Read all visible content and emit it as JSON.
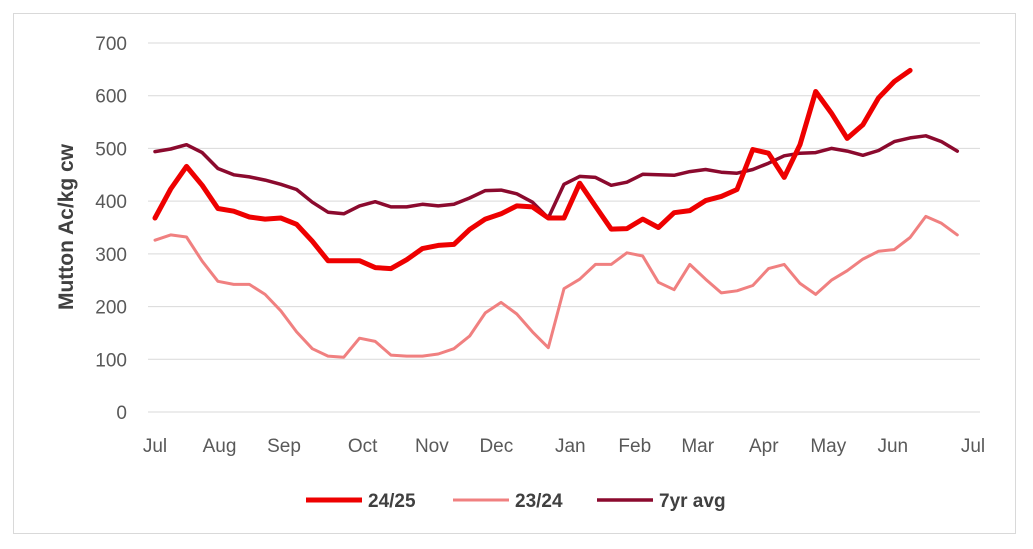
{
  "chart_data": {
    "type": "line",
    "ylabel": "Mutton Ac/kg cw",
    "ylim": [
      0,
      700
    ],
    "yticks": [
      0,
      100,
      200,
      300,
      400,
      500,
      600,
      700
    ],
    "x_range": [
      0,
      52
    ],
    "x_tick_labels": [
      {
        "label": "Jul",
        "x": 0
      },
      {
        "label": "Aug",
        "x": 4.1
      },
      {
        "label": "Sep",
        "x": 8.2
      },
      {
        "label": "Oct",
        "x": 13.2
      },
      {
        "label": "Nov",
        "x": 17.6
      },
      {
        "label": "Dec",
        "x": 21.7
      },
      {
        "label": "Jan",
        "x": 26.4
      },
      {
        "label": "Feb",
        "x": 30.5
      },
      {
        "label": "Mar",
        "x": 34.5
      },
      {
        "label": "Apr",
        "x": 38.7
      },
      {
        "label": "May",
        "x": 42.8
      },
      {
        "label": "Jun",
        "x": 46.9
      },
      {
        "label": "Jul",
        "x": 52
      }
    ],
    "grid": true,
    "legend_position": "bottom",
    "series": [
      {
        "name": "24/25",
        "color": "#ee0000",
        "width": 5,
        "values": [
          [
            0,
            368
          ],
          [
            1,
            423
          ],
          [
            2,
            466
          ],
          [
            3,
            430
          ],
          [
            4,
            386
          ],
          [
            5,
            381
          ],
          [
            6,
            370
          ],
          [
            7,
            366
          ],
          [
            8,
            368
          ],
          [
            9,
            356
          ],
          [
            10,
            324
          ],
          [
            11,
            287
          ],
          [
            12,
            287
          ],
          [
            13,
            287
          ],
          [
            14,
            274
          ],
          [
            15,
            272
          ],
          [
            16,
            289
          ],
          [
            17,
            310
          ],
          [
            18,
            316
          ],
          [
            19,
            318
          ],
          [
            20,
            346
          ],
          [
            21,
            366
          ],
          [
            22,
            376
          ],
          [
            23,
            391
          ],
          [
            24,
            389
          ],
          [
            25,
            368
          ],
          [
            26,
            368
          ],
          [
            27,
            434
          ],
          [
            28,
            390
          ],
          [
            29,
            347
          ],
          [
            30,
            348
          ],
          [
            31,
            366
          ],
          [
            32,
            350
          ],
          [
            33,
            378
          ],
          [
            34,
            382
          ],
          [
            35,
            401
          ],
          [
            36,
            409
          ],
          [
            37,
            422
          ],
          [
            38,
            498
          ],
          [
            39,
            491
          ],
          [
            40,
            445
          ],
          [
            41,
            507
          ],
          [
            42,
            608
          ],
          [
            43,
            567
          ],
          [
            44,
            519
          ],
          [
            45,
            545
          ],
          [
            46,
            596
          ],
          [
            47,
            627
          ],
          [
            48,
            648
          ]
        ]
      },
      {
        "name": "23/24",
        "color": "#f08080",
        "width": 3,
        "values": [
          [
            0,
            326
          ],
          [
            1,
            336
          ],
          [
            2,
            332
          ],
          [
            3,
            286
          ],
          [
            4,
            248
          ],
          [
            5,
            242
          ],
          [
            6,
            242
          ],
          [
            7,
            223
          ],
          [
            8,
            192
          ],
          [
            9,
            152
          ],
          [
            10,
            120
          ],
          [
            11,
            106
          ],
          [
            12,
            104
          ],
          [
            13,
            140
          ],
          [
            14,
            134
          ],
          [
            15,
            108
          ],
          [
            16,
            106
          ],
          [
            17,
            106
          ],
          [
            18,
            110
          ],
          [
            19,
            120
          ],
          [
            20,
            144
          ],
          [
            21,
            188
          ],
          [
            22,
            208
          ],
          [
            23,
            186
          ],
          [
            24,
            152
          ],
          [
            25,
            122
          ],
          [
            26,
            234
          ],
          [
            27,
            252
          ],
          [
            28,
            280
          ],
          [
            29,
            280
          ],
          [
            30,
            302
          ],
          [
            31,
            296
          ],
          [
            32,
            246
          ],
          [
            33,
            232
          ],
          [
            34,
            280
          ],
          [
            35,
            252
          ],
          [
            36,
            226
          ],
          [
            37,
            230
          ],
          [
            38,
            240
          ],
          [
            39,
            272
          ],
          [
            40,
            280
          ],
          [
            41,
            244
          ],
          [
            42,
            223
          ],
          [
            43,
            250
          ],
          [
            44,
            268
          ],
          [
            45,
            290
          ],
          [
            46,
            305
          ],
          [
            47,
            308
          ],
          [
            48,
            331
          ],
          [
            49,
            371
          ],
          [
            50,
            358
          ],
          [
            51,
            336
          ]
        ]
      },
      {
        "name": "7yr avg",
        "color": "#8b0a2e",
        "width": 3.5,
        "values": [
          [
            0,
            494
          ],
          [
            1,
            499
          ],
          [
            2,
            507
          ],
          [
            3,
            492
          ],
          [
            4,
            462
          ],
          [
            5,
            450
          ],
          [
            6,
            446
          ],
          [
            7,
            440
          ],
          [
            8,
            432
          ],
          [
            9,
            422
          ],
          [
            10,
            398
          ],
          [
            11,
            379
          ],
          [
            12,
            376
          ],
          [
            13,
            391
          ],
          [
            14,
            399
          ],
          [
            15,
            389
          ],
          [
            16,
            389
          ],
          [
            17,
            394
          ],
          [
            18,
            391
          ],
          [
            19,
            394
          ],
          [
            20,
            406
          ],
          [
            21,
            420
          ],
          [
            22,
            421
          ],
          [
            23,
            414
          ],
          [
            24,
            398
          ],
          [
            25,
            368
          ],
          [
            26,
            432
          ],
          [
            27,
            447
          ],
          [
            28,
            445
          ],
          [
            29,
            430
          ],
          [
            30,
            436
          ],
          [
            31,
            451
          ],
          [
            32,
            450
          ],
          [
            33,
            449
          ],
          [
            34,
            456
          ],
          [
            35,
            460
          ],
          [
            36,
            455
          ],
          [
            37,
            453
          ],
          [
            38,
            460
          ],
          [
            39,
            472
          ],
          [
            40,
            486
          ],
          [
            41,
            491
          ],
          [
            42,
            492
          ],
          [
            43,
            500
          ],
          [
            44,
            495
          ],
          [
            45,
            487
          ],
          [
            46,
            496
          ],
          [
            47,
            513
          ],
          [
            48,
            520
          ],
          [
            49,
            524
          ],
          [
            50,
            513
          ],
          [
            51,
            495
          ]
        ]
      }
    ]
  }
}
